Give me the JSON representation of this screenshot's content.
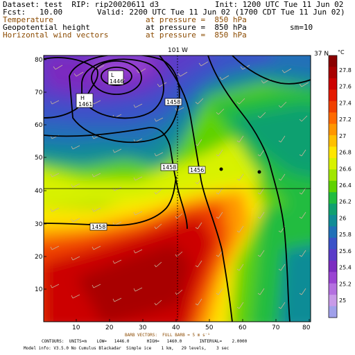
{
  "header": {
    "dataset": "Dataset: test  RIP: rip20020611 d3",
    "init": "Init: 1200 UTC Tue 11 Jun 02",
    "fcst": "Fcst:   10.00",
    "valid": "Valid: 2200 UTC Tue 11 Jun 02 (1700 CDT Tue 11 Jun 02)",
    "field1": "Temperature",
    "field1_level": "at pressure =  850 hPa",
    "field2": "Geopotential height",
    "field2_level": "at pressure =  850 hPa",
    "field2_extra": "sm=10",
    "field3": "Horizontal wind vectors",
    "field3_level": "at pressure =  850 hPa"
  },
  "map": {
    "meridian_label": "101 W",
    "parallel_label": "37 N",
    "x_ticks": [
      "10",
      "20",
      "30",
      "40",
      "50",
      "60",
      "70",
      "80"
    ],
    "y_ticks": [
      "10",
      "20",
      "30",
      "40",
      "50",
      "60",
      "70",
      "80"
    ],
    "contour_labels": [
      "L",
      "1446",
      "H",
      "1461",
      "1458",
      "1458",
      "1456",
      "1458"
    ]
  },
  "colorbar": {
    "unit": "°C",
    "labels": [
      "27.8",
      "27.6",
      "27.4",
      "27.2",
      "27",
      "26.8",
      "26.6",
      "26.4",
      "26.2",
      "26",
      "25.8",
      "25.6",
      "25.4",
      "25.2",
      "25"
    ],
    "colors": [
      "#8a0000",
      "#a80000",
      "#cc0000",
      "#e41a00",
      "#f04000",
      "#ff6a00",
      "#ff9600",
      "#ffc000",
      "#ffe600",
      "#d8f200",
      "#a0e600",
      "#5ed200",
      "#20bc40",
      "#10a070",
      "#108c96",
      "#2070b8",
      "#3a52c8",
      "#5a3cc8",
      "#7c2cc0",
      "#9a44d2",
      "#b470e0",
      "#c89ae8",
      "#a0a0ea"
    ]
  },
  "footer": {
    "barb": "BARB VECTORS:  FULL BARB = 5 m s⁻¹",
    "contours": "CONTOURS:  UNITS=m    LOW=   1446.0       HIGH=   1460.0       INTERVAL=    2.0000",
    "model": "Model info: V3.5.0 No Cumulus Blackadar  Simple ice    1 km,   29 levels,    3 sec"
  },
  "colors": {
    "contour": "#000000",
    "barb": "#c8b49a",
    "footer_orange": "#8b4a00"
  }
}
